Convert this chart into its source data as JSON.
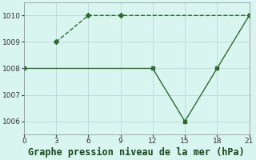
{
  "title": "Graphe pression niveau de la mer (hPa)",
  "series1_x": [
    3,
    6,
    9,
    21
  ],
  "series1_y": [
    1009,
    1010,
    1010,
    1010
  ],
  "series2_x": [
    0,
    12,
    15,
    18,
    21
  ],
  "series2_y": [
    1008,
    1008,
    1006,
    1008,
    1010
  ],
  "xlim": [
    0,
    21
  ],
  "ylim": [
    1005.5,
    1010.5
  ],
  "yticks": [
    1006,
    1007,
    1008,
    1009,
    1010
  ],
  "xticks": [
    0,
    3,
    6,
    9,
    12,
    15,
    18,
    21
  ],
  "line_color": "#2d6a2d",
  "bg_color": "#d8f5f0",
  "grid_color": "#b8d8d8",
  "title_fontsize": 8.5
}
